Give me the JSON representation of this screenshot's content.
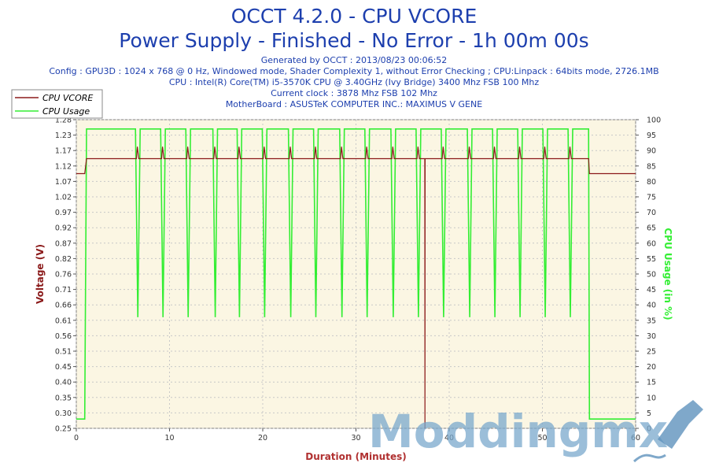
{
  "chart_data": {
    "type": "line",
    "title": "OCCT 4.2.0 - CPU VCORE",
    "subtitle": "Power Supply - Finished - No Error - 1h 00m 00s",
    "info_lines": [
      "Generated by OCCT : 2013/08/23 00:06:52",
      "Config : GPU3D : 1024 x 768 @ 0 Hz, Windowed mode, Shader Complexity 1, without Error Checking ; CPU:Linpack : 64bits mode, 2726.1MB",
      "CPU : Intel(R) Core(TM) i5-3570K CPU @ 3.40GHz (Ivy Bridge) 3400 Mhz FSB 100 Mhz",
      "Current clock : 3878 Mhz FSB 102 Mhz",
      "MotherBoard : ASUSTeK COMPUTER INC.: MAXIMUS V GENE"
    ],
    "xlabel": "Duration (Minutes)",
    "ylabel": "Voltage (V)",
    "y2label": "CPU Usage (in %)",
    "xlim": [
      0,
      60
    ],
    "ylim": [
      0.25,
      1.28
    ],
    "y2lim": [
      0,
      100
    ],
    "x_ticks": [
      "0",
      "10",
      "20",
      "30",
      "40",
      "50",
      "60"
    ],
    "y_ticks": [
      "0.25",
      "0.30",
      "0.35",
      "0.40",
      "0.45",
      "0.51",
      "0.56",
      "0.61",
      "0.66",
      "0.71",
      "0.76",
      "0.82",
      "0.87",
      "0.92",
      "0.97",
      "1.02",
      "1.07",
      "1.12",
      "1.17",
      "1.23",
      "1.28"
    ],
    "y2_ticks": [
      "0",
      "5",
      "10",
      "15",
      "20",
      "25",
      "30",
      "35",
      "40",
      "45",
      "50",
      "55",
      "60",
      "65",
      "70",
      "75",
      "80",
      "85",
      "90",
      "95",
      "100"
    ],
    "grid": true,
    "legend_placement": "top-left",
    "series": [
      {
        "name": "CPU VCORE",
        "color": "#8b1a1a",
        "axis": "left",
        "idle_value": 1.1,
        "load_value": 1.15,
        "spike_value": 1.19,
        "glitch_x": 37.4,
        "glitch_value": 0.25
      },
      {
        "name": "CPU Usage",
        "color": "#33ee33",
        "axis": "right",
        "idle_value": 3,
        "load_value": 97,
        "dip_value": 36,
        "dip_x": [
          1.0,
          6.6,
          9.3,
          12.0,
          14.9,
          17.5,
          20.2,
          23.0,
          25.7,
          28.5,
          31.2,
          34.0,
          36.7,
          39.4,
          42.2,
          44.9,
          47.6,
          50.3,
          53.0
        ]
      }
    ],
    "load_start": 1.0,
    "load_end": 55.0
  },
  "watermark": "Moddingmx"
}
